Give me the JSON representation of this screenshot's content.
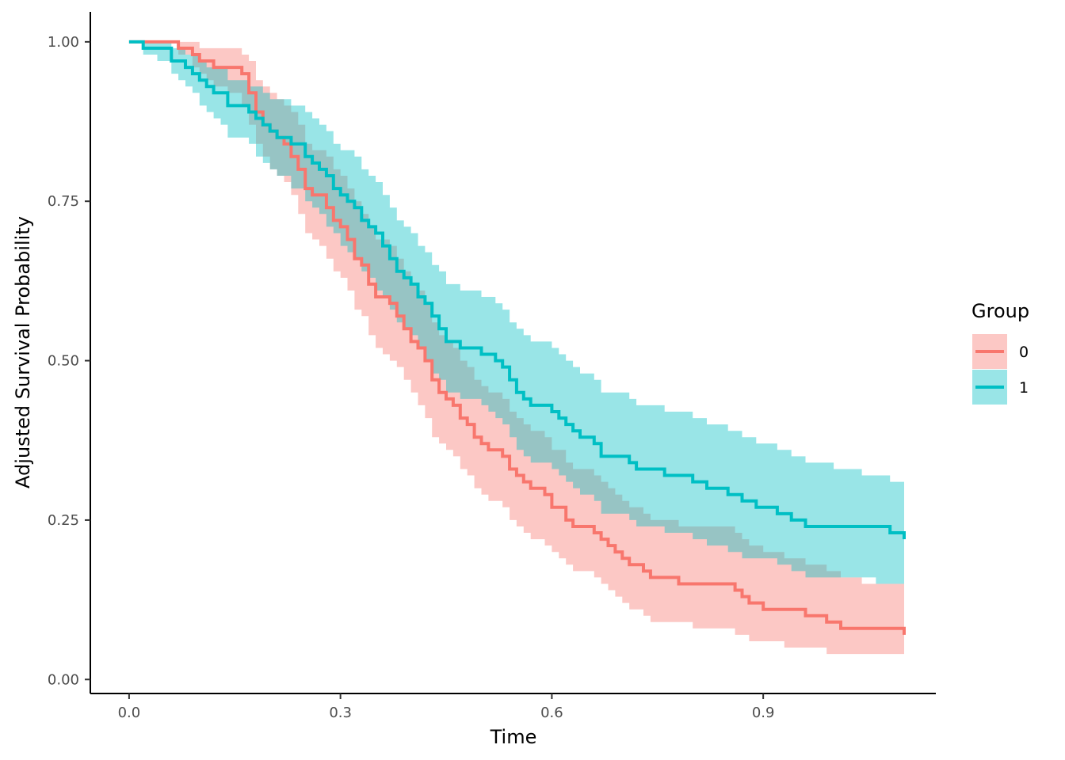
{
  "chart_data": {
    "type": "line",
    "subtype": "step-survival-curve-with-confidence-bands",
    "xlabel": "Time",
    "ylabel": "Adjusted Survival Probability",
    "xlim": [
      -0.055,
      1.145
    ],
    "ylim": [
      -0.022,
      1.047
    ],
    "x_ticks": [
      0.0,
      0.3,
      0.6,
      0.9
    ],
    "x_tick_labels": [
      "0.0",
      "0.3",
      "0.6",
      "0.9"
    ],
    "y_ticks": [
      0.0,
      0.25,
      0.5,
      0.75,
      1.0
    ],
    "y_tick_labels": [
      "0.00",
      "0.25",
      "0.50",
      "0.75",
      "1.00"
    ],
    "grid": false,
    "legend": {
      "title": "Group",
      "placement": "right"
    },
    "series": [
      {
        "name": "0",
        "color": "#F8766D",
        "x": [
          0.0,
          0.07,
          0.09,
          0.1,
          0.11,
          0.12,
          0.14,
          0.16,
          0.17,
          0.18,
          0.19,
          0.2,
          0.21,
          0.22,
          0.23,
          0.24,
          0.25,
          0.26,
          0.27,
          0.28,
          0.29,
          0.3,
          0.31,
          0.32,
          0.33,
          0.34,
          0.35,
          0.36,
          0.37,
          0.38,
          0.39,
          0.4,
          0.41,
          0.42,
          0.43,
          0.44,
          0.45,
          0.46,
          0.47,
          0.48,
          0.49,
          0.5,
          0.51,
          0.52,
          0.53,
          0.54,
          0.55,
          0.56,
          0.57,
          0.58,
          0.59,
          0.6,
          0.61,
          0.62,
          0.63,
          0.64,
          0.65,
          0.66,
          0.67,
          0.68,
          0.69,
          0.7,
          0.71,
          0.72,
          0.73,
          0.74,
          0.78,
          0.8,
          0.81,
          0.86,
          0.87,
          0.88,
          0.9,
          0.93,
          0.96,
          0.98,
          0.99,
          1.0,
          1.01,
          1.02,
          1.04,
          1.05,
          1.06,
          1.07,
          1.09,
          1.1
        ],
        "y": [
          1.0,
          0.99,
          0.98,
          0.97,
          0.97,
          0.96,
          0.96,
          0.95,
          0.92,
          0.89,
          0.87,
          0.86,
          0.85,
          0.84,
          0.82,
          0.8,
          0.77,
          0.76,
          0.76,
          0.74,
          0.72,
          0.71,
          0.69,
          0.66,
          0.65,
          0.62,
          0.6,
          0.6,
          0.59,
          0.57,
          0.55,
          0.53,
          0.52,
          0.5,
          0.47,
          0.45,
          0.44,
          0.43,
          0.41,
          0.4,
          0.38,
          0.37,
          0.36,
          0.36,
          0.35,
          0.33,
          0.32,
          0.31,
          0.3,
          0.3,
          0.29,
          0.27,
          0.27,
          0.25,
          0.24,
          0.24,
          0.24,
          0.23,
          0.22,
          0.21,
          0.2,
          0.19,
          0.18,
          0.18,
          0.17,
          0.16,
          0.15,
          0.15,
          0.15,
          0.14,
          0.13,
          0.12,
          0.11,
          0.11,
          0.1,
          0.1,
          0.09,
          0.09,
          0.08,
          0.08,
          0.08,
          0.08,
          0.08,
          0.08,
          0.08,
          0.07
        ],
        "lower": [
          1.0,
          0.98,
          0.96,
          0.95,
          0.94,
          0.93,
          0.92,
          0.9,
          0.87,
          0.84,
          0.82,
          0.8,
          0.79,
          0.78,
          0.76,
          0.73,
          0.7,
          0.69,
          0.68,
          0.66,
          0.64,
          0.63,
          0.61,
          0.58,
          0.57,
          0.54,
          0.52,
          0.51,
          0.5,
          0.49,
          0.47,
          0.45,
          0.43,
          0.41,
          0.38,
          0.37,
          0.36,
          0.35,
          0.33,
          0.32,
          0.3,
          0.29,
          0.28,
          0.28,
          0.27,
          0.25,
          0.24,
          0.23,
          0.22,
          0.22,
          0.21,
          0.2,
          0.19,
          0.18,
          0.17,
          0.17,
          0.17,
          0.16,
          0.15,
          0.14,
          0.13,
          0.12,
          0.11,
          0.11,
          0.1,
          0.09,
          0.09,
          0.08,
          0.08,
          0.07,
          0.07,
          0.06,
          0.06,
          0.05,
          0.05,
          0.05,
          0.04,
          0.04,
          0.04,
          0.04,
          0.04,
          0.04,
          0.04,
          0.04,
          0.04,
          0.04
        ],
        "upper": [
          1.0,
          1.0,
          1.0,
          0.99,
          0.99,
          0.99,
          0.99,
          0.98,
          0.97,
          0.94,
          0.93,
          0.92,
          0.91,
          0.9,
          0.89,
          0.87,
          0.84,
          0.83,
          0.83,
          0.82,
          0.8,
          0.79,
          0.77,
          0.75,
          0.73,
          0.71,
          0.69,
          0.69,
          0.68,
          0.66,
          0.64,
          0.62,
          0.61,
          0.59,
          0.56,
          0.54,
          0.53,
          0.52,
          0.5,
          0.49,
          0.47,
          0.46,
          0.45,
          0.45,
          0.44,
          0.42,
          0.41,
          0.4,
          0.39,
          0.39,
          0.38,
          0.36,
          0.36,
          0.34,
          0.33,
          0.33,
          0.33,
          0.32,
          0.31,
          0.3,
          0.29,
          0.28,
          0.27,
          0.27,
          0.26,
          0.25,
          0.24,
          0.24,
          0.24,
          0.23,
          0.22,
          0.21,
          0.2,
          0.19,
          0.18,
          0.18,
          0.17,
          0.17,
          0.16,
          0.16,
          0.15,
          0.15,
          0.15,
          0.15,
          0.15,
          0.12
        ]
      },
      {
        "name": "1",
        "color": "#00BFC4",
        "x": [
          0.0,
          0.02,
          0.04,
          0.06,
          0.07,
          0.08,
          0.09,
          0.1,
          0.11,
          0.12,
          0.13,
          0.14,
          0.15,
          0.16,
          0.17,
          0.18,
          0.19,
          0.2,
          0.21,
          0.22,
          0.23,
          0.24,
          0.25,
          0.26,
          0.27,
          0.28,
          0.29,
          0.3,
          0.31,
          0.32,
          0.33,
          0.34,
          0.35,
          0.36,
          0.37,
          0.38,
          0.39,
          0.4,
          0.41,
          0.42,
          0.43,
          0.44,
          0.45,
          0.46,
          0.47,
          0.48,
          0.49,
          0.5,
          0.51,
          0.52,
          0.53,
          0.54,
          0.55,
          0.56,
          0.57,
          0.58,
          0.59,
          0.6,
          0.61,
          0.62,
          0.63,
          0.64,
          0.65,
          0.66,
          0.67,
          0.68,
          0.69,
          0.7,
          0.71,
          0.72,
          0.73,
          0.76,
          0.79,
          0.8,
          0.82,
          0.85,
          0.87,
          0.89,
          0.9,
          0.91,
          0.92,
          0.94,
          0.96,
          0.98,
          1.0,
          1.02,
          1.04,
          1.06,
          1.08,
          1.1
        ],
        "y": [
          1.0,
          0.99,
          0.99,
          0.97,
          0.97,
          0.96,
          0.95,
          0.94,
          0.93,
          0.92,
          0.92,
          0.9,
          0.9,
          0.9,
          0.89,
          0.88,
          0.87,
          0.86,
          0.85,
          0.85,
          0.84,
          0.84,
          0.82,
          0.81,
          0.8,
          0.79,
          0.77,
          0.76,
          0.75,
          0.74,
          0.72,
          0.71,
          0.7,
          0.68,
          0.66,
          0.64,
          0.63,
          0.62,
          0.6,
          0.59,
          0.57,
          0.55,
          0.53,
          0.53,
          0.52,
          0.52,
          0.52,
          0.51,
          0.51,
          0.5,
          0.49,
          0.47,
          0.45,
          0.44,
          0.43,
          0.43,
          0.43,
          0.42,
          0.41,
          0.4,
          0.39,
          0.38,
          0.38,
          0.37,
          0.35,
          0.35,
          0.35,
          0.35,
          0.34,
          0.33,
          0.33,
          0.32,
          0.32,
          0.31,
          0.3,
          0.29,
          0.28,
          0.27,
          0.27,
          0.27,
          0.26,
          0.25,
          0.24,
          0.24,
          0.24,
          0.24,
          0.24,
          0.24,
          0.23,
          0.22
        ],
        "lower": [
          1.0,
          0.98,
          0.97,
          0.95,
          0.94,
          0.93,
          0.92,
          0.9,
          0.89,
          0.88,
          0.87,
          0.85,
          0.85,
          0.85,
          0.84,
          0.82,
          0.81,
          0.8,
          0.79,
          0.79,
          0.77,
          0.77,
          0.75,
          0.74,
          0.73,
          0.71,
          0.7,
          0.68,
          0.67,
          0.66,
          0.64,
          0.63,
          0.61,
          0.6,
          0.58,
          0.56,
          0.55,
          0.54,
          0.52,
          0.5,
          0.48,
          0.47,
          0.45,
          0.45,
          0.44,
          0.44,
          0.44,
          0.43,
          0.42,
          0.41,
          0.4,
          0.38,
          0.36,
          0.35,
          0.34,
          0.34,
          0.34,
          0.33,
          0.32,
          0.31,
          0.3,
          0.29,
          0.29,
          0.28,
          0.26,
          0.26,
          0.26,
          0.26,
          0.25,
          0.24,
          0.24,
          0.23,
          0.23,
          0.22,
          0.21,
          0.2,
          0.19,
          0.19,
          0.19,
          0.19,
          0.18,
          0.17,
          0.16,
          0.16,
          0.16,
          0.16,
          0.16,
          0.15,
          0.15,
          0.14
        ],
        "upper": [
          1.0,
          1.0,
          1.0,
          0.99,
          0.99,
          0.98,
          0.98,
          0.97,
          0.96,
          0.96,
          0.96,
          0.94,
          0.94,
          0.94,
          0.93,
          0.93,
          0.92,
          0.91,
          0.91,
          0.91,
          0.9,
          0.9,
          0.89,
          0.88,
          0.87,
          0.86,
          0.84,
          0.83,
          0.83,
          0.82,
          0.8,
          0.79,
          0.78,
          0.76,
          0.74,
          0.72,
          0.71,
          0.7,
          0.68,
          0.67,
          0.65,
          0.64,
          0.62,
          0.62,
          0.61,
          0.61,
          0.61,
          0.6,
          0.6,
          0.59,
          0.58,
          0.56,
          0.55,
          0.54,
          0.53,
          0.53,
          0.53,
          0.52,
          0.51,
          0.5,
          0.49,
          0.48,
          0.48,
          0.47,
          0.45,
          0.45,
          0.45,
          0.45,
          0.44,
          0.43,
          0.43,
          0.42,
          0.42,
          0.41,
          0.4,
          0.39,
          0.38,
          0.37,
          0.37,
          0.37,
          0.36,
          0.35,
          0.34,
          0.34,
          0.33,
          0.33,
          0.32,
          0.32,
          0.31,
          0.3
        ]
      }
    ]
  }
}
